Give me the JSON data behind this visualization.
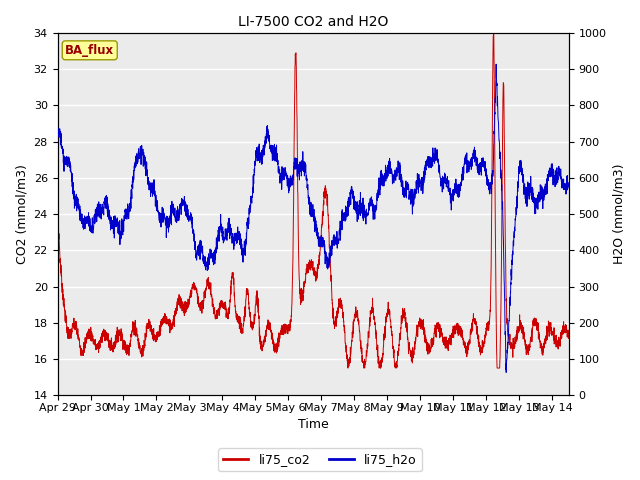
{
  "title": "LI-7500 CO2 and H2O",
  "xlabel": "Time",
  "ylabel_left": "CO2 (mmol/m3)",
  "ylabel_right": "H2O (mmol/m3)",
  "ylim_left": [
    14,
    34
  ],
  "ylim_right": [
    0,
    1000
  ],
  "yticks_left": [
    14,
    16,
    18,
    20,
    22,
    24,
    26,
    28,
    30,
    32,
    34
  ],
  "yticks_right": [
    0,
    100,
    200,
    300,
    400,
    500,
    600,
    700,
    800,
    900,
    1000
  ],
  "xtick_labels": [
    "Apr 29",
    "Apr 30",
    "May 1",
    "May 2",
    "May 3",
    "May 4",
    "May 5",
    "May 6",
    "May 7",
    "May 8",
    "May 9",
    "May 10",
    "May 11",
    "May 12",
    "May 13",
    "May 14"
  ],
  "color_co2": "#cc0000",
  "color_h2o": "#0000cc",
  "legend_label_co2": "li75_co2",
  "legend_label_h2o": "li75_h2o",
  "badge_text": "BA_flux",
  "badge_facecolor": "#ffff99",
  "badge_edgecolor": "#999900",
  "badge_textcolor": "#990000",
  "plot_bg_color": "#ebebeb",
  "title_fontsize": 10,
  "axis_fontsize": 9,
  "tick_fontsize": 8,
  "xlim": [
    0,
    15.5
  ],
  "figsize": [
    6.4,
    4.8
  ],
  "dpi": 100
}
